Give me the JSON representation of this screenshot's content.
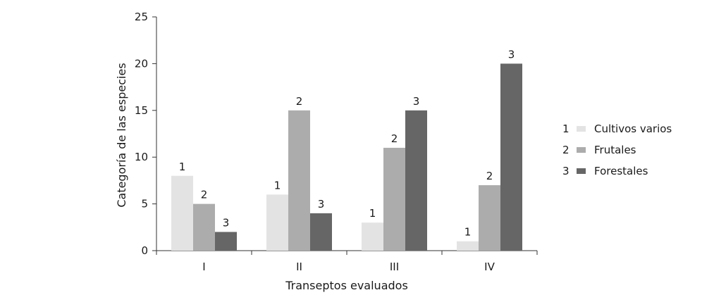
{
  "chart_data": {
    "type": "bar",
    "categories": [
      "I",
      "II",
      "III",
      "IV"
    ],
    "series": [
      {
        "name": "Cultivos varios",
        "key": "1",
        "color": "#e3e3e3",
        "values": [
          8,
          6,
          3,
          1
        ]
      },
      {
        "name": "Frutales",
        "key": "2",
        "color": "#acacac",
        "values": [
          5,
          15,
          11,
          7
        ]
      },
      {
        "name": "Forestales",
        "key": "3",
        "color": "#666666",
        "values": [
          2,
          4,
          15,
          20
        ]
      }
    ],
    "xlabel": "Transeptos evaluados",
    "ylabel": "Categoría de las especies",
    "ylim": [
      0,
      25
    ],
    "yticks": [
      0,
      5,
      10,
      15,
      20,
      25
    ],
    "grid": false,
    "legend_position": "right"
  }
}
